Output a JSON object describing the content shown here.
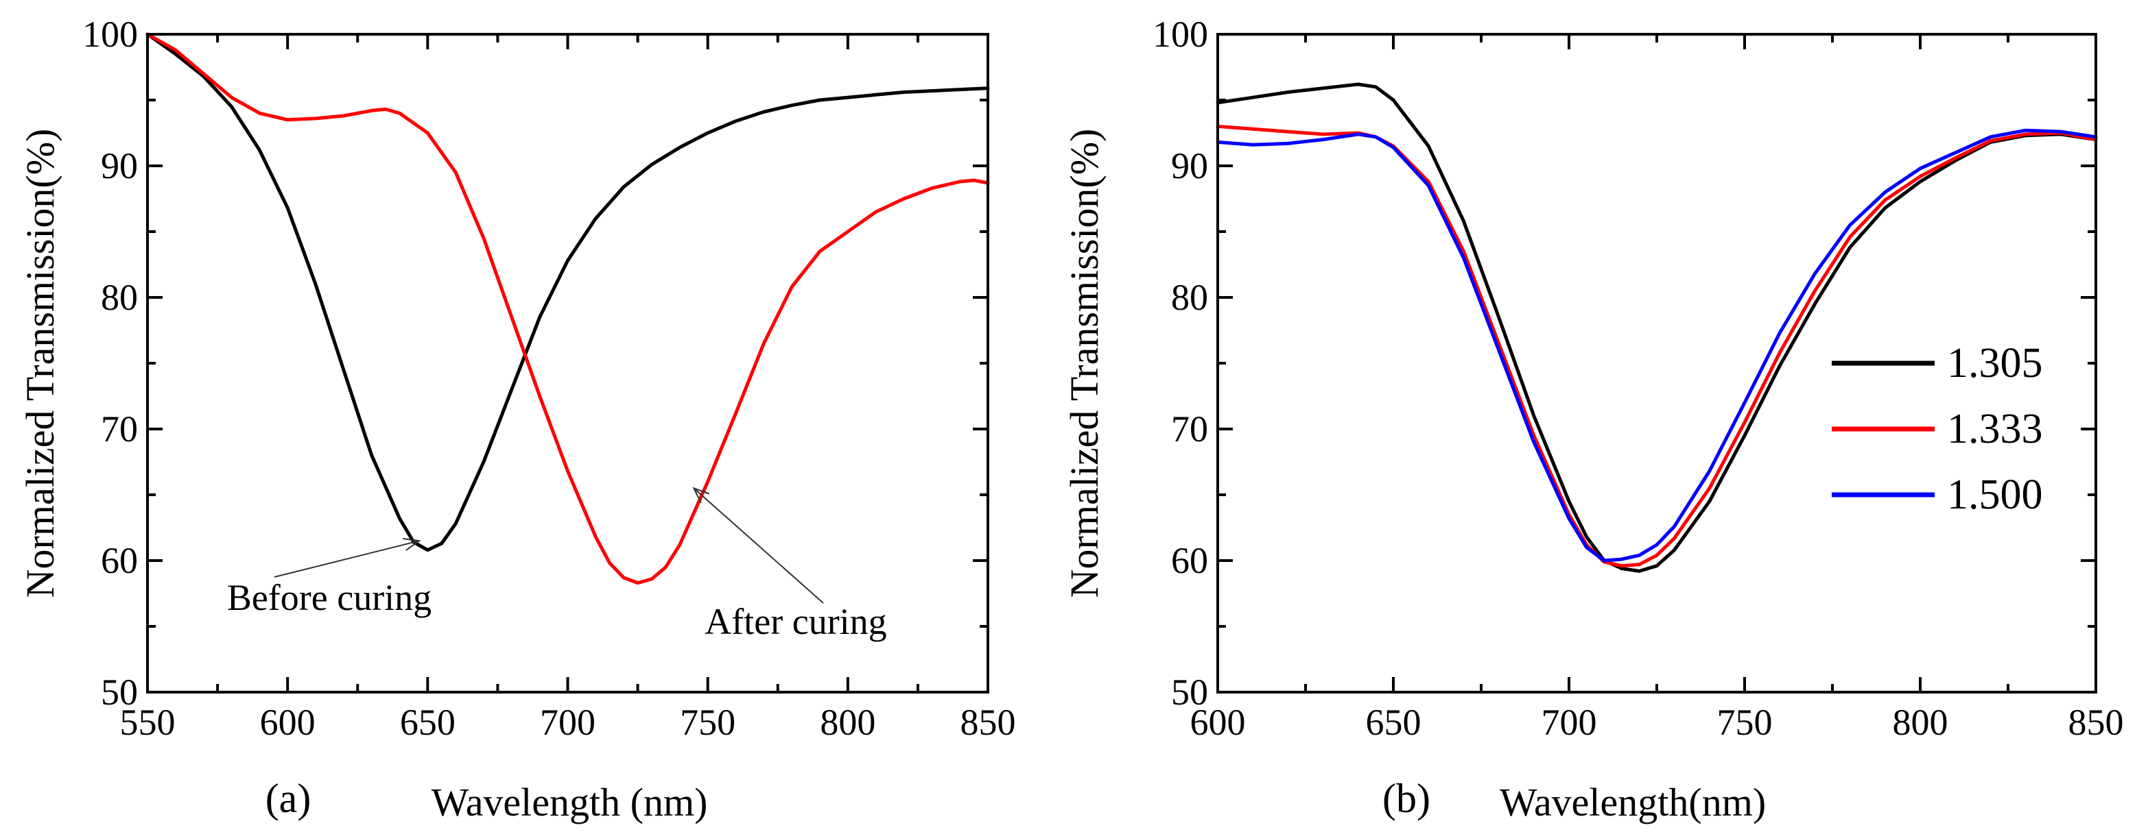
{
  "chart_data": [
    {
      "panel": "(a)",
      "type": "line",
      "xlabel": "Wavelength (nm)",
      "ylabel": "Normalized Transmission(%)",
      "xlim": [
        550,
        850
      ],
      "ylim": [
        50,
        100
      ],
      "xticks": [
        550,
        600,
        650,
        700,
        750,
        800,
        850
      ],
      "yticks": [
        50,
        60,
        70,
        80,
        90,
        100
      ],
      "series": [
        {
          "name": "Before curing",
          "color": "#000000",
          "x": [
            550,
            560,
            570,
            580,
            590,
            600,
            610,
            620,
            630,
            640,
            645,
            650,
            655,
            660,
            670,
            680,
            690,
            700,
            710,
            720,
            730,
            740,
            750,
            760,
            770,
            780,
            790,
            800,
            810,
            820,
            830,
            840,
            850
          ],
          "y": [
            100,
            98.5,
            96.8,
            94.5,
            91.2,
            86.8,
            81.0,
            74.5,
            68.0,
            63.2,
            61.4,
            60.8,
            61.3,
            62.8,
            67.5,
            73.0,
            78.5,
            82.8,
            86.0,
            88.4,
            90.1,
            91.4,
            92.5,
            93.4,
            94.1,
            94.6,
            95.0,
            95.2,
            95.4,
            95.6,
            95.7,
            95.8,
            95.9
          ]
        },
        {
          "name": "After curing",
          "color": "#ff0000",
          "x": [
            550,
            560,
            570,
            580,
            590,
            600,
            610,
            620,
            630,
            635,
            640,
            650,
            660,
            670,
            680,
            690,
            700,
            710,
            715,
            720,
            725,
            730,
            735,
            740,
            750,
            760,
            770,
            780,
            790,
            800,
            810,
            820,
            830,
            840,
            845,
            850
          ],
          "y": [
            100,
            98.8,
            97.0,
            95.2,
            94.0,
            93.5,
            93.6,
            93.8,
            94.2,
            94.3,
            94.0,
            92.5,
            89.5,
            84.5,
            78.5,
            72.5,
            66.8,
            61.8,
            59.8,
            58.7,
            58.3,
            58.6,
            59.5,
            61.2,
            66.0,
            71.2,
            76.5,
            80.8,
            83.5,
            85.0,
            86.5,
            87.5,
            88.3,
            88.8,
            88.9,
            88.7
          ]
        }
      ],
      "annotations": [
        {
          "text": "Before curing",
          "target": [
            647,
            61.5
          ]
        },
        {
          "text": "After curing",
          "target": [
            745,
            65.5
          ]
        }
      ]
    },
    {
      "panel": "(b)",
      "type": "line",
      "xlabel": "Wavelength(nm)",
      "ylabel": "Normalized Transmission(%)",
      "xlim": [
        600,
        850
      ],
      "ylim": [
        50,
        100
      ],
      "xticks": [
        600,
        650,
        700,
        750,
        800,
        850
      ],
      "yticks": [
        50,
        60,
        70,
        80,
        90,
        100
      ],
      "legend_position": "right",
      "series": [
        {
          "name": "1.305",
          "color": "#000000",
          "x": [
            600,
            610,
            620,
            630,
            640,
            645,
            650,
            660,
            670,
            680,
            690,
            700,
            705,
            710,
            715,
            720,
            725,
            730,
            740,
            750,
            760,
            770,
            780,
            790,
            800,
            810,
            820,
            830,
            840,
            850
          ],
          "y": [
            94.8,
            95.2,
            95.6,
            95.9,
            96.2,
            96.0,
            95.0,
            91.5,
            85.8,
            78.5,
            71.0,
            64.5,
            61.8,
            60.0,
            59.4,
            59.2,
            59.6,
            60.8,
            64.5,
            69.5,
            74.8,
            79.5,
            83.8,
            86.8,
            88.8,
            90.4,
            91.8,
            92.3,
            92.4,
            92.0
          ]
        },
        {
          "name": "1.333",
          "color": "#ff0000",
          "x": [
            600,
            610,
            620,
            630,
            640,
            645,
            650,
            660,
            670,
            680,
            690,
            700,
            705,
            710,
            715,
            720,
            725,
            730,
            740,
            750,
            760,
            770,
            780,
            790,
            800,
            810,
            820,
            830,
            840,
            850
          ],
          "y": [
            93.0,
            92.8,
            92.6,
            92.4,
            92.5,
            92.2,
            91.5,
            88.8,
            83.5,
            76.5,
            69.5,
            63.5,
            61.2,
            59.9,
            59.6,
            59.7,
            60.4,
            61.7,
            65.5,
            70.5,
            75.8,
            80.5,
            84.6,
            87.4,
            89.2,
            90.6,
            91.9,
            92.4,
            92.5,
            92.0
          ]
        },
        {
          "name": "1.500",
          "color": "#0000ff",
          "x": [
            600,
            610,
            620,
            630,
            640,
            645,
            650,
            660,
            670,
            680,
            690,
            700,
            705,
            710,
            715,
            720,
            725,
            730,
            740,
            750,
            760,
            770,
            780,
            790,
            800,
            810,
            820,
            830,
            840,
            850
          ],
          "y": [
            91.8,
            91.6,
            91.7,
            92.0,
            92.4,
            92.2,
            91.4,
            88.5,
            83.0,
            76.0,
            69.0,
            63.2,
            61.0,
            60.0,
            60.1,
            60.4,
            61.2,
            62.6,
            66.8,
            72.0,
            77.3,
            81.8,
            85.5,
            88.0,
            89.8,
            91.0,
            92.2,
            92.7,
            92.6,
            92.2
          ]
        }
      ]
    }
  ]
}
